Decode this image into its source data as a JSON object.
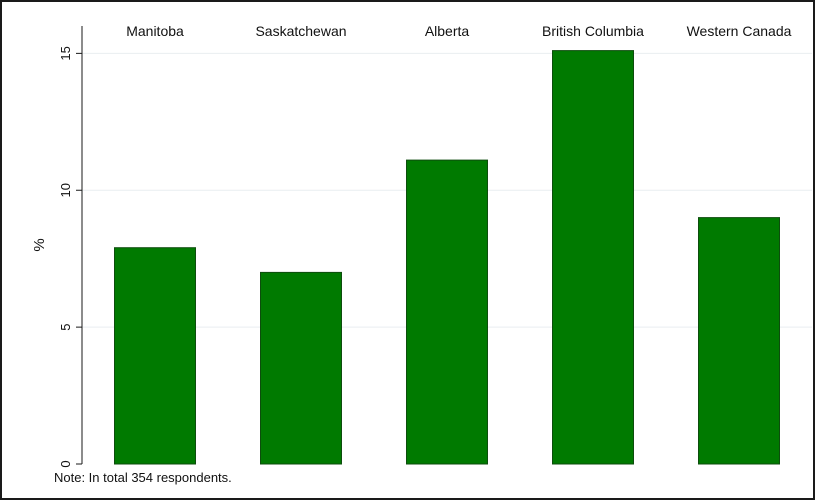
{
  "chart_data": {
    "type": "bar",
    "categories": [
      "Manitoba",
      "Saskatchewan",
      "Alberta",
      "British Columbia",
      "Western Canada"
    ],
    "values": [
      7.9,
      7.0,
      11.1,
      15.1,
      9.0
    ],
    "ylabel": "%",
    "yticks": [
      "0",
      "5",
      "10",
      "15"
    ],
    "ylim": [
      0,
      16
    ],
    "grid": true,
    "category_labels_position": "top",
    "colors": {
      "bar_fill": "#007a00",
      "bar_stroke": "#0d4d0d",
      "grid": "#e9eef0",
      "axis": "#1a1a1a"
    },
    "note": "Note: In total 354 respondents."
  }
}
